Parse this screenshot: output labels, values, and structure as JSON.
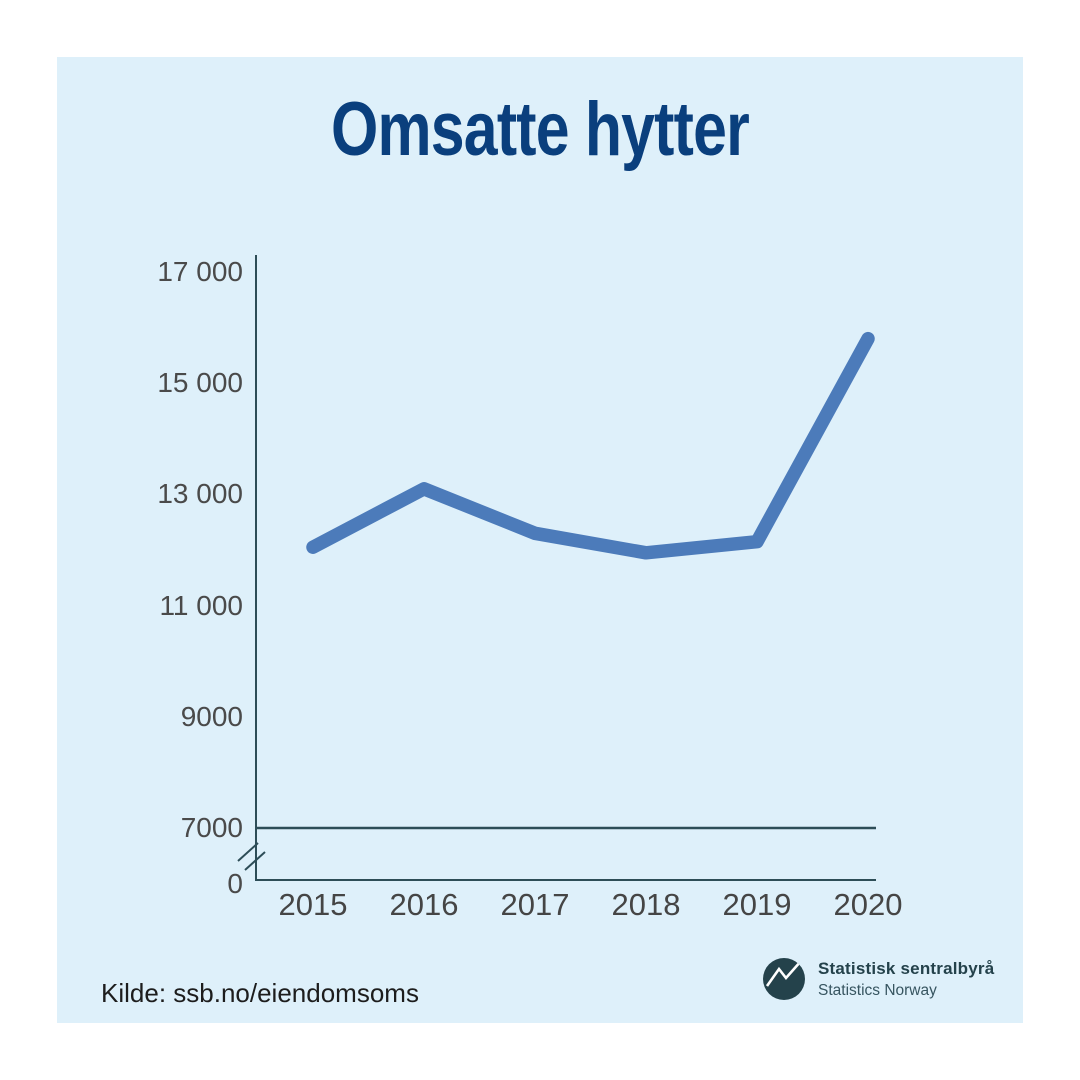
{
  "title": "Omsatte hytter",
  "chart_data": {
    "type": "line",
    "title": "Omsatte hytter",
    "categories": [
      "2015",
      "2016",
      "2017",
      "2018",
      "2019",
      "2020"
    ],
    "series": [
      {
        "name": "Omsatte hytter",
        "values": [
          12050,
          13100,
          12300,
          11950,
          12150,
          15800
        ]
      }
    ],
    "values": [
      12050,
      13100,
      12300,
      11950,
      12150,
      15800
    ],
    "xlabel": "",
    "ylabel": "",
    "yticks": [
      17000,
      15000,
      13000,
      11000,
      9000,
      7000,
      0
    ],
    "ytick_labels": [
      "17 000",
      "15 000",
      "13 000",
      "11 000",
      "9000",
      "7000",
      "0"
    ],
    "ylim": [
      0,
      17300
    ],
    "axis_break": true,
    "baseline_value": 7000,
    "grid": false,
    "legend": "none"
  },
  "footer": {
    "source": "Kilde: ssb.no/eiendomsoms",
    "logo": {
      "name_no": "Statistisk sentralbyrå",
      "name_en": "Statistics Norway"
    }
  },
  "colors": {
    "page_background": "#ffffff",
    "card_background": "#def0fa",
    "title_text": "#0a3f7d",
    "series_line": "#4c7bba",
    "axis_line": "#2d4d57",
    "tick_text": "#4a4a4a",
    "logo_dark": "#24424b",
    "source_text": "#1d1d1d"
  }
}
